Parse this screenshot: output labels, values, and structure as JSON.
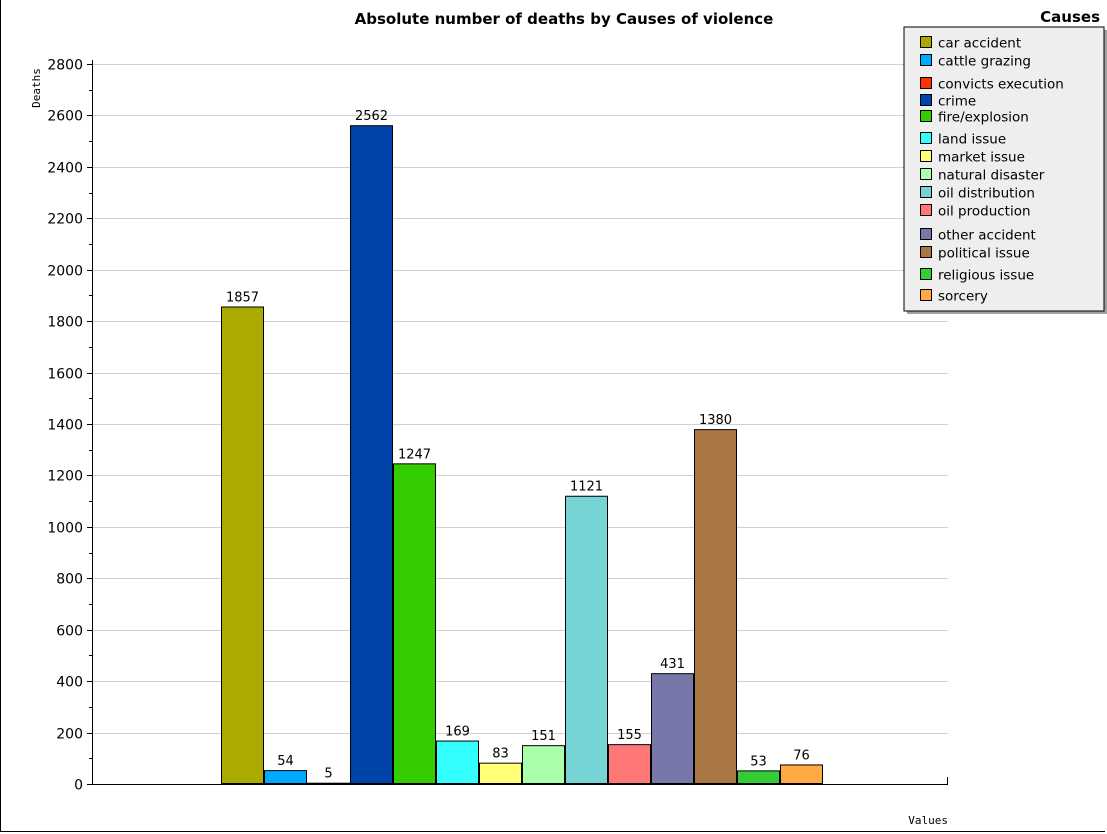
{
  "chart_data": {
    "type": "bar",
    "title": "Absolute number of deaths by Causes of violence",
    "xlabel": "Values",
    "ylabel": "Deaths",
    "ylim": [
      0,
      2800
    ],
    "yticks": [
      "0",
      "200",
      "400",
      "600",
      "800",
      "1000",
      "1200",
      "1400",
      "1600",
      "1800",
      "2000",
      "2200",
      "2400",
      "2600",
      "2800"
    ],
    "grid": true,
    "legend_title": "Causes",
    "legend_position": "top-right",
    "series": [
      {
        "name": "car accident",
        "value": 1857,
        "color": "#aaaa00"
      },
      {
        "name": "cattle grazing",
        "value": 54,
        "color": "#00aaff"
      },
      {
        "name": "convicts execution",
        "value": 5,
        "color": "#ff3300"
      },
      {
        "name": "crime",
        "value": 2562,
        "color": "#0044aa"
      },
      {
        "name": "fire/explosion",
        "value": 1247,
        "color": "#33cc00"
      },
      {
        "name": "land issue",
        "value": 169,
        "color": "#33ffff"
      },
      {
        "name": "market issue",
        "value": 83,
        "color": "#ffff77"
      },
      {
        "name": "natural disaster",
        "value": 151,
        "color": "#aaffaa"
      },
      {
        "name": "oil distribution",
        "value": 1121,
        "color": "#77d4d4"
      },
      {
        "name": "oil production",
        "value": 155,
        "color": "#ff7777"
      },
      {
        "name": "other accident",
        "value": 431,
        "color": "#7777aa"
      },
      {
        "name": "political issue",
        "value": 1380,
        "color": "#aa7744"
      },
      {
        "name": "religious issue",
        "value": 53,
        "color": "#33cc33"
      },
      {
        "name": "sorcery",
        "value": 76,
        "color": "#ffaa44"
      }
    ]
  }
}
